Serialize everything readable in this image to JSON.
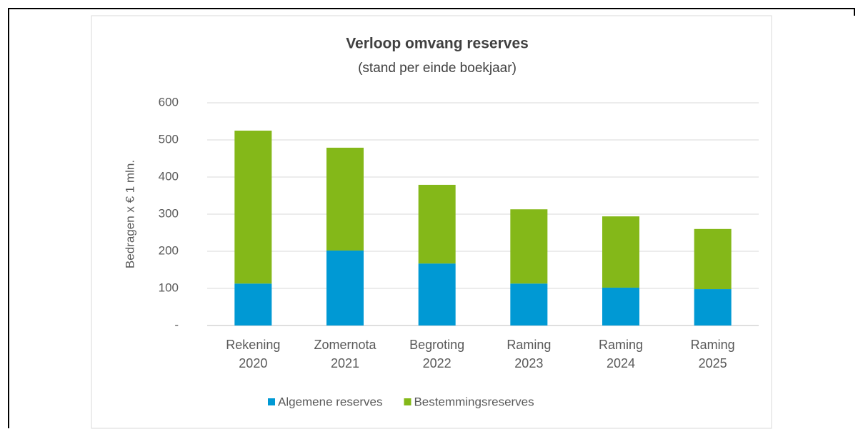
{
  "chart_data": {
    "type": "stacked_bar",
    "title": "Verloop omvang reserves",
    "subtitle": "(stand per einde boekjaar)",
    "y_label": "Bedragen x € 1 mln.",
    "categories": [
      [
        "Rekening",
        "2020"
      ],
      [
        "Zomernota",
        "2021"
      ],
      [
        "Begroting",
        "2022"
      ],
      [
        "Raming",
        "2023"
      ],
      [
        "Raming",
        "2024"
      ],
      [
        "Raming",
        "2025"
      ]
    ],
    "series": [
      {
        "name": "Algemene reserves",
        "color": "#0099d4",
        "values": [
          113,
          202,
          167,
          113,
          102,
          98
        ]
      },
      {
        "name": "Bestemmingsreserves",
        "color": "#84b819",
        "values": [
          412,
          277,
          212,
          200,
          192,
          162
        ]
      }
    ],
    "ylim": [
      0,
      600
    ],
    "yticks": [
      {
        "value": 0,
        "label": "-"
      },
      100,
      200,
      300,
      400,
      500,
      600
    ],
    "grid": true,
    "legend": "bottom"
  }
}
